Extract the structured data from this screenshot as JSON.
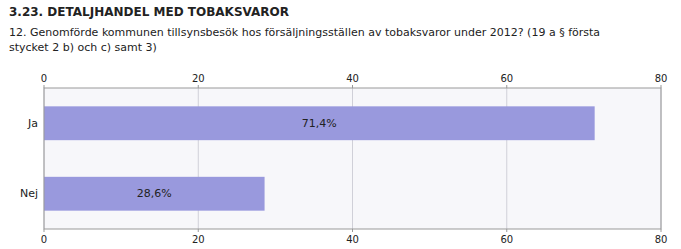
{
  "chart_data": {
    "type": "bar",
    "orientation": "horizontal",
    "title": "3.23. DETALJHANDEL MED TOBAKSVAROR",
    "subtitle": "12. Genomförde kommunen tillsynsbesök hos försäljningsställen av tobaksvaror under 2012? (19 a § första\nstycket 2 b) och c) samt 3)",
    "categories": [
      "Ja",
      "Nej"
    ],
    "values": [
      71.4,
      28.6
    ],
    "value_labels": [
      "71,4%",
      "28,6%"
    ],
    "data_labels": true,
    "color": "#9999dd",
    "xlim": [
      0,
      80
    ],
    "xticks": [
      0,
      20,
      40,
      60,
      80
    ],
    "grid": true
  }
}
